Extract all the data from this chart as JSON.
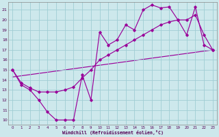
{
  "xlabel": "Windchill (Refroidissement éolien,°C)",
  "xlim": [
    -0.5,
    23.5
  ],
  "ylim": [
    9.5,
    21.8
  ],
  "yticks": [
    10,
    11,
    12,
    13,
    14,
    15,
    16,
    17,
    18,
    19,
    20,
    21
  ],
  "xticks": [
    0,
    1,
    2,
    3,
    4,
    5,
    6,
    7,
    8,
    9,
    10,
    11,
    12,
    13,
    14,
    15,
    16,
    17,
    18,
    19,
    20,
    21,
    22,
    23
  ],
  "bg_color": "#cde8ec",
  "grid_color": "#9fcdd4",
  "line_color": "#990099",
  "line1_x": [
    0,
    1,
    2,
    3,
    4,
    5,
    6,
    7,
    8,
    9,
    10,
    11,
    12,
    13,
    14,
    15,
    16,
    17,
    18,
    19,
    20,
    21,
    22,
    23
  ],
  "line1_y": [
    15.0,
    13.5,
    13.0,
    12.0,
    10.8,
    10.0,
    10.0,
    10.0,
    14.5,
    12.0,
    18.8,
    17.5,
    18.0,
    19.5,
    19.0,
    21.0,
    21.5,
    21.2,
    21.3,
    20.0,
    18.5,
    21.3,
    17.5,
    17.0
  ],
  "line2_x": [
    0,
    1,
    2,
    3,
    4,
    5,
    6,
    7,
    8,
    9,
    10,
    11,
    12,
    13,
    14,
    15,
    16,
    17,
    18,
    19,
    20,
    21,
    22,
    23
  ],
  "line2_y": [
    15.0,
    13.7,
    13.2,
    12.8,
    12.8,
    12.8,
    13.0,
    13.3,
    14.2,
    15.0,
    16.0,
    16.5,
    17.0,
    17.5,
    18.0,
    18.5,
    19.0,
    19.5,
    19.8,
    20.0,
    20.0,
    20.5,
    18.5,
    17.0
  ],
  "line3_x": [
    0,
    23
  ],
  "line3_y": [
    14.3,
    17.0
  ]
}
